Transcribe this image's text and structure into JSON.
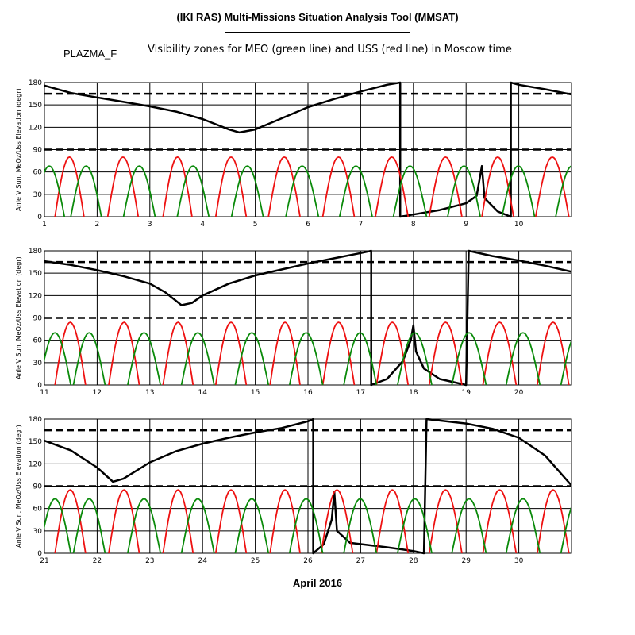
{
  "header": {
    "title": "(IKI RAS) Multi-Missions Situation Analysis Tool (MMSAT)",
    "tag": "PLAZMA_F",
    "subtitle": "Visibility zones for MEO (green line) and USS (red line) in Moscow time",
    "month_label": "April 2016"
  },
  "colors": {
    "meo": "#0a8a0a",
    "uss": "#ee1111",
    "sun": "#000000",
    "threshold": "#000000",
    "grid": "#000000"
  },
  "chart_data": [
    {
      "type": "line",
      "ylabel": "Anle V Sun, MeOz/Uss Elevation (degr)",
      "xlim": [
        1,
        11
      ],
      "ylim": [
        0,
        180
      ],
      "xticks": [
        "1",
        "2",
        "3",
        "4",
        "5",
        "6",
        "7",
        "8",
        "9",
        "10"
      ],
      "yticks": [
        "0",
        "30",
        "60",
        "90",
        "120",
        "150",
        "180"
      ],
      "thresholds": [
        165,
        90
      ],
      "series": [
        {
          "key": "sun",
          "color": "#000000",
          "points": [
            [
              1,
              176
            ],
            [
              1.5,
              166
            ],
            [
              2,
              160
            ],
            [
              2.5,
              154
            ],
            [
              3,
              148
            ],
            [
              3.5,
              141
            ],
            [
              4,
              131
            ],
            [
              4.5,
              117
            ],
            [
              4.7,
              113
            ],
            [
              5,
              117
            ],
            [
              5.5,
              132
            ],
            [
              6,
              147
            ],
            [
              6.5,
              158
            ],
            [
              7,
              168
            ],
            [
              7.5,
              177
            ],
            [
              7.75,
              180
            ],
            [
              7.75,
              0
            ],
            [
              8,
              3
            ],
            [
              8.5,
              9
            ],
            [
              9,
              18
            ],
            [
              9.2,
              28
            ],
            [
              9.3,
              68
            ],
            [
              9.35,
              25
            ],
            [
              9.6,
              7
            ],
            [
              9.85,
              0
            ],
            [
              9.85,
              180
            ],
            [
              10,
              177
            ],
            [
              10.5,
              171
            ],
            [
              11,
              164
            ]
          ]
        },
        {
          "key": "uss",
          "color": "#ee1111",
          "peak": 80,
          "passes": [
            [
              1.2,
              1.75
            ],
            [
              2.2,
              2.78
            ],
            [
              3.25,
              3.8
            ],
            [
              4.25,
              4.83
            ],
            [
              5.25,
              5.85
            ],
            [
              6.28,
              6.88
            ],
            [
              7.28,
              7.9
            ],
            [
              8.3,
              8.92
            ],
            [
              9.3,
              9.9
            ],
            [
              10.32,
              10.95
            ]
          ]
        },
        {
          "key": "meo",
          "color": "#0a8a0a",
          "peak": 68,
          "passes": [
            [
              0.8,
              1.38
            ],
            [
              1.5,
              2.08
            ],
            [
              2.5,
              3.1
            ],
            [
              3.52,
              4.12
            ],
            [
              4.55,
              5.15
            ],
            [
              5.58,
              6.2
            ],
            [
              6.6,
              7.22
            ],
            [
              7.62,
              8.25
            ],
            [
              8.65,
              9.27
            ],
            [
              9.68,
              10.3
            ],
            [
              10.7,
              11.32
            ]
          ]
        }
      ]
    },
    {
      "type": "line",
      "ylabel": "Anle V Sun, MeOz/Uss Elevation (degr)",
      "xlim": [
        11,
        21
      ],
      "ylim": [
        0,
        180
      ],
      "xticks": [
        "11",
        "12",
        "13",
        "14",
        "15",
        "16",
        "17",
        "18",
        "19",
        "20"
      ],
      "yticks": [
        "0",
        "30",
        "60",
        "90",
        "120",
        "150",
        "180"
      ],
      "thresholds": [
        165,
        90
      ],
      "series": [
        {
          "key": "sun",
          "color": "#000000",
          "points": [
            [
              11,
              166
            ],
            [
              11.5,
              161
            ],
            [
              12,
              154
            ],
            [
              12.5,
              146
            ],
            [
              13,
              136
            ],
            [
              13.3,
              124
            ],
            [
              13.6,
              107
            ],
            [
              13.8,
              110
            ],
            [
              14,
              120
            ],
            [
              14.5,
              136
            ],
            [
              15,
              147
            ],
            [
              15.5,
              155
            ],
            [
              16,
              163
            ],
            [
              16.5,
              170
            ],
            [
              17,
              177
            ],
            [
              17.2,
              180
            ],
            [
              17.2,
              0
            ],
            [
              17.5,
              8
            ],
            [
              17.8,
              32
            ],
            [
              17.95,
              60
            ],
            [
              18,
              80
            ],
            [
              18.05,
              45
            ],
            [
              18.2,
              22
            ],
            [
              18.5,
              8
            ],
            [
              19,
              0
            ],
            [
              19.05,
              180
            ],
            [
              19.5,
              173
            ],
            [
              20,
              167
            ],
            [
              20.5,
              160
            ],
            [
              21,
              152
            ]
          ]
        },
        {
          "key": "uss",
          "color": "#ee1111",
          "peak": 84,
          "passes": [
            [
              11.2,
              11.78
            ],
            [
              12.22,
              12.8
            ],
            [
              13.25,
              13.82
            ],
            [
              14.25,
              14.83
            ],
            [
              15.28,
              15.85
            ],
            [
              16.28,
              16.88
            ],
            [
              17.3,
              17.9
            ],
            [
              18.3,
              18.92
            ],
            [
              19.32,
              19.95
            ],
            [
              20.35,
              20.95
            ]
          ]
        },
        {
          "key": "meo",
          "color": "#0a8a0a",
          "peak": 70,
          "passes": [
            [
              10.9,
              11.5
            ],
            [
              11.55,
              12.15
            ],
            [
              12.58,
              13.2
            ],
            [
              13.6,
              14.22
            ],
            [
              14.62,
              15.25
            ],
            [
              15.65,
              16.28
            ],
            [
              16.68,
              17.3
            ],
            [
              17.7,
              18.35
            ],
            [
              18.73,
              19.38
            ],
            [
              19.76,
              20.4
            ],
            [
              20.8,
              21.42
            ]
          ]
        }
      ]
    },
    {
      "type": "line",
      "ylabel": "Anle V Sun, MeOz/Uss Elevation (degr)",
      "xlim": [
        21,
        31
      ],
      "ylim": [
        0,
        180
      ],
      "xticks": [
        "21",
        "22",
        "23",
        "24",
        "25",
        "26",
        "27",
        "28",
        "29",
        "30"
      ],
      "yticks": [
        "0",
        "30",
        "60",
        "90",
        "120",
        "150",
        "180"
      ],
      "thresholds": [
        165,
        90
      ],
      "series": [
        {
          "key": "sun",
          "color": "#000000",
          "points": [
            [
              21,
              151
            ],
            [
              21.5,
              138
            ],
            [
              22,
              115
            ],
            [
              22.3,
              96
            ],
            [
              22.5,
              100
            ],
            [
              23,
              122
            ],
            [
              23.5,
              137
            ],
            [
              24,
              147
            ],
            [
              24.5,
              155
            ],
            [
              25,
              162
            ],
            [
              25.5,
              168
            ],
            [
              26,
              177
            ],
            [
              26.1,
              180
            ],
            [
              26.1,
              0
            ],
            [
              26.3,
              12
            ],
            [
              26.45,
              45
            ],
            [
              26.5,
              82
            ],
            [
              26.55,
              30
            ],
            [
              26.8,
              14
            ],
            [
              27.5,
              8
            ],
            [
              28,
              3
            ],
            [
              28.2,
              0
            ],
            [
              28.25,
              180
            ],
            [
              28.5,
              178
            ],
            [
              29,
              174
            ],
            [
              29.5,
              167
            ],
            [
              30,
              155
            ],
            [
              30.5,
              131
            ],
            [
              31,
              91
            ]
          ]
        },
        {
          "key": "uss",
          "color": "#ee1111",
          "peak": 85,
          "passes": [
            [
              21.2,
              21.78
            ],
            [
              22.22,
              22.8
            ],
            [
              23.25,
              23.82
            ],
            [
              24.25,
              24.83
            ],
            [
              25.28,
              25.85
            ],
            [
              26.25,
              26.85
            ],
            [
              27.3,
              27.9
            ],
            [
              28.3,
              28.92
            ],
            [
              29.32,
              29.95
            ],
            [
              30.35,
              30.95
            ]
          ]
        },
        {
          "key": "meo",
          "color": "#0a8a0a",
          "peak": 73,
          "passes": [
            [
              20.9,
              21.5
            ],
            [
              21.55,
              22.15
            ],
            [
              22.58,
              23.2
            ],
            [
              23.6,
              24.22
            ],
            [
              24.62,
              25.25
            ],
            [
              25.65,
              26.28
            ],
            [
              26.68,
              27.3
            ],
            [
              27.7,
              28.35
            ],
            [
              28.73,
              29.38
            ],
            [
              29.76,
              30.4
            ],
            [
              30.8,
              31.42
            ]
          ]
        }
      ]
    }
  ]
}
